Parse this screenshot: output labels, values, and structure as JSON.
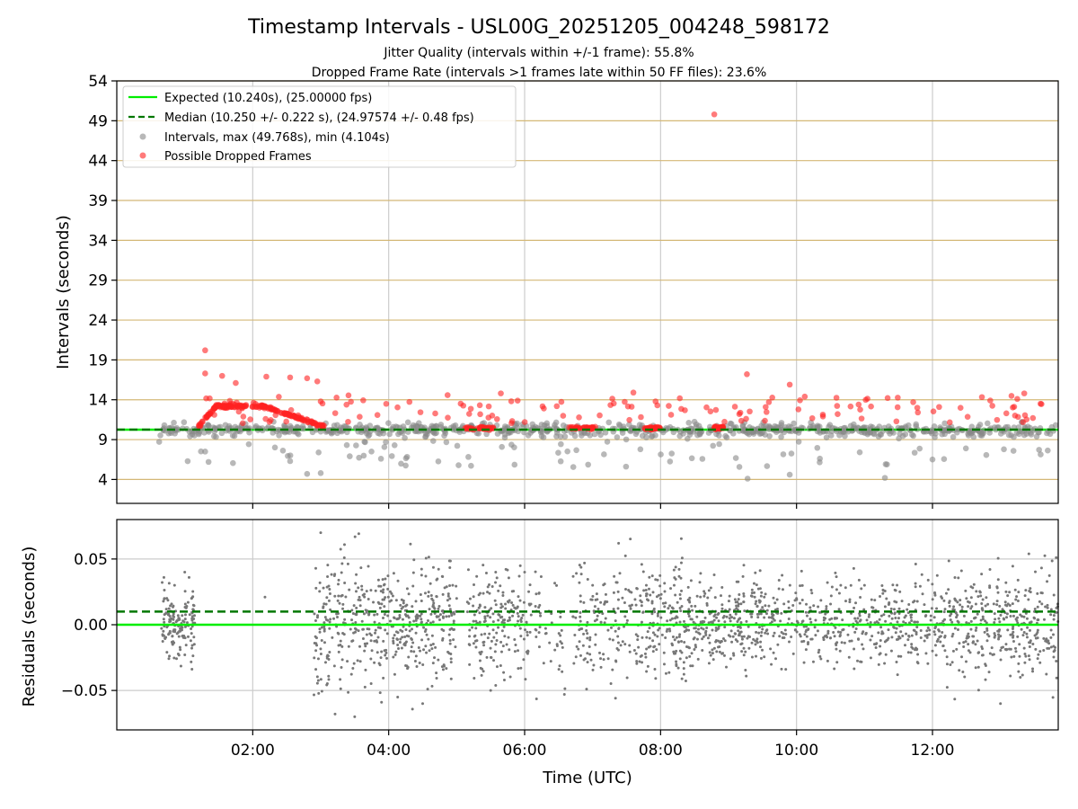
{
  "chart_data": [
    {
      "type": "scatter",
      "title": "Timestamp Intervals - USL00G_20251205_004248_598172",
      "subtitle_lines": [
        "Jitter Quality (intervals within +/-1 frame): 55.8%",
        "Dropped Frame Rate (intervals >1 frames late within 50 FF files): 23.6%"
      ],
      "xlabel": "",
      "ylabel": "Intervals (seconds)",
      "xlim_hours": [
        0.0,
        13.85
      ],
      "ylim": [
        1.0,
        54.0
      ],
      "yticks": [
        4,
        9,
        14,
        19,
        24,
        29,
        34,
        39,
        44,
        49,
        54
      ],
      "ytick_labels": [
        "4",
        "9",
        "14",
        "19",
        "24",
        "29",
        "34",
        "39",
        "44",
        "49",
        "54"
      ],
      "hgrid_color": "#d4b877",
      "vgrid_color": "#cccccc",
      "legend_position": "upper-left",
      "legend": [
        {
          "label": "Expected (10.240s), (25.00000 fps)",
          "style": "solid-line",
          "color": "#00ee00"
        },
        {
          "label": "Median (10.250 +/- 0.222 s), (24.97574 +/- 0.48 fps)",
          "style": "dashed-line",
          "color": "#007700"
        },
        {
          "label": "Intervals, max (49.768s), min (4.104s)",
          "style": "marker",
          "color": "#888888"
        },
        {
          "label": "Possible Dropped Frames",
          "style": "marker",
          "color": "#ff2222"
        }
      ],
      "expected_interval": 10.24,
      "median_interval": 10.25,
      "series": [
        {
          "name": "Possible Dropped Frames (highlighted)",
          "color": "#ff2222",
          "x_hours": [
            8.79,
            1.3,
            1.3,
            1.55,
            1.75,
            2.2,
            2.55,
            2.8,
            2.95,
            9.27,
            9.9,
            5.65,
            7.6,
            12.85,
            13.35,
            3.0
          ],
          "y": [
            49.8,
            20.2,
            17.3,
            17.0,
            16.1,
            16.9,
            16.8,
            16.7,
            16.3,
            17.2,
            15.9,
            14.8,
            14.9,
            13.9,
            14.8,
            13.8
          ]
        },
        {
          "name": "Intervals (highlighted)",
          "color": "#888888",
          "x_hours": [
            0.7,
            1.3,
            1.35,
            2.55,
            2.8,
            3.0,
            9.28,
            9.9,
            11.3,
            12.0
          ],
          "y": [
            10.8,
            7.5,
            6.2,
            6.3,
            4.7,
            4.8,
            4.1,
            4.6,
            4.2,
            6.5
          ]
        }
      ]
    },
    {
      "type": "scatter",
      "xlabel": "Time (UTC)",
      "ylabel": "Residuals (seconds)",
      "xlim_hours": [
        0.0,
        13.85
      ],
      "ylim": [
        -0.08,
        0.08
      ],
      "xticks_hours": [
        2,
        4,
        6,
        8,
        10,
        12
      ],
      "xtick_labels": [
        "02:00",
        "04:00",
        "06:00",
        "08:00",
        "10:00",
        "12:00"
      ],
      "yticks": [
        0.05,
        0.0,
        -0.05
      ],
      "ytick_labels": [
        "0.05",
        "0.00",
        "−0.05"
      ],
      "expected_residual": 0.0,
      "median_residual": 0.01,
      "series": [
        {
          "name": "Residuals",
          "color": "#777777",
          "x_hours": [
            0.7,
            0.85,
            1.0,
            1.1,
            3.0,
            3.5,
            4.0,
            4.5,
            5.0,
            5.5,
            6.0,
            7.0,
            7.5,
            8.0,
            8.5,
            9.0,
            9.5,
            10.0,
            10.5,
            11.0,
            11.5,
            12.0,
            12.5,
            13.0,
            13.5
          ],
          "y": [
            0.02,
            0.03,
            0.04,
            0.02,
            0.07,
            -0.07,
            0.01,
            -0.06,
            0.02,
            -0.05,
            0.04,
            0.03,
            0.01,
            0.02,
            -0.01,
            0.01,
            0.0,
            0.02,
            -0.01,
            0.03,
            0.0,
            -0.02,
            0.02,
            -0.06,
            0.01
          ]
        }
      ]
    }
  ]
}
